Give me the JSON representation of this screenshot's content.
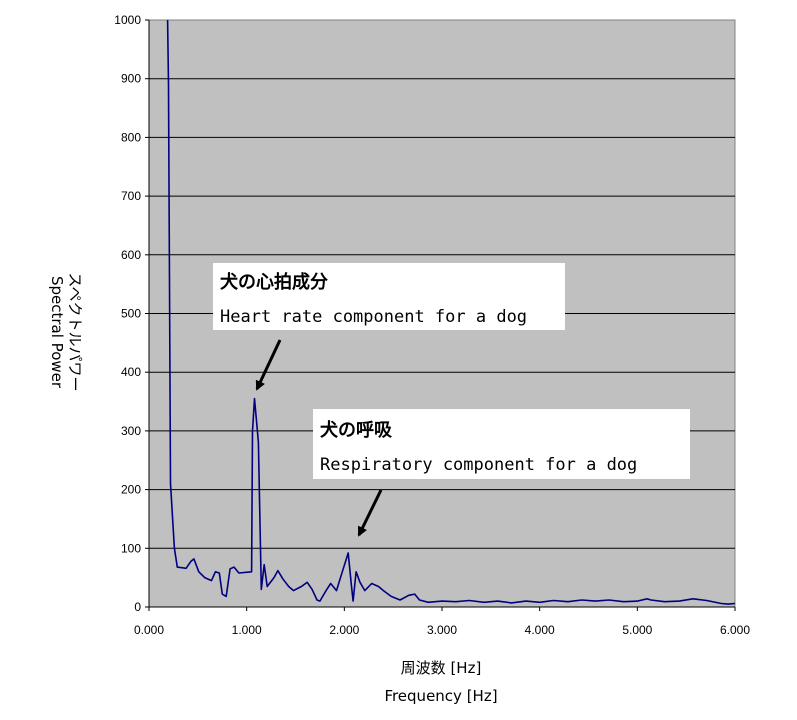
{
  "chart_data": {
    "type": "line",
    "title": "",
    "xlabel_ja": "周波数 [Hz]",
    "xlabel_en": "Frequency [Hz]",
    "ylabel_ja": "スペクトルパワー",
    "ylabel_en": "Spectral Power",
    "xlim": [
      0,
      6
    ],
    "ylim": [
      0,
      1000
    ],
    "xticks": [
      "0.000",
      "1.000",
      "2.000",
      "3.000",
      "4.000",
      "5.000",
      "6.000"
    ],
    "yticks": [
      "0",
      "100",
      "200",
      "300",
      "400",
      "500",
      "600",
      "700",
      "800",
      "900",
      "1000"
    ],
    "grid": "horizontal",
    "plot_background": "#C0C0C0",
    "line_color": "#000080",
    "series": [
      {
        "points": [
          [
            0.19,
            1000
          ],
          [
            0.2,
            890
          ],
          [
            0.22,
            210
          ],
          [
            0.26,
            100
          ],
          [
            0.29,
            68
          ],
          [
            0.38,
            66
          ],
          [
            0.43,
            78
          ],
          [
            0.46,
            82
          ],
          [
            0.51,
            60
          ],
          [
            0.57,
            50
          ],
          [
            0.64,
            45
          ],
          [
            0.68,
            60
          ],
          [
            0.72,
            58
          ],
          [
            0.75,
            22
          ],
          [
            0.79,
            18
          ],
          [
            0.83,
            65
          ],
          [
            0.87,
            68
          ],
          [
            0.92,
            58
          ],
          [
            1.05,
            60
          ],
          [
            1.06,
            300
          ],
          [
            1.08,
            355
          ],
          [
            1.11,
            300
          ],
          [
            1.12,
            280
          ],
          [
            1.15,
            30
          ],
          [
            1.18,
            72
          ],
          [
            1.21,
            35
          ],
          [
            1.28,
            50
          ],
          [
            1.32,
            62
          ],
          [
            1.37,
            48
          ],
          [
            1.43,
            35
          ],
          [
            1.48,
            28
          ],
          [
            1.56,
            35
          ],
          [
            1.62,
            42
          ],
          [
            1.67,
            30
          ],
          [
            1.72,
            12
          ],
          [
            1.75,
            10
          ],
          [
            1.82,
            30
          ],
          [
            1.86,
            40
          ],
          [
            1.92,
            28
          ],
          [
            1.97,
            55
          ],
          [
            2.04,
            92
          ],
          [
            2.07,
            40
          ],
          [
            2.09,
            10
          ],
          [
            2.12,
            60
          ],
          [
            2.16,
            42
          ],
          [
            2.21,
            28
          ],
          [
            2.28,
            40
          ],
          [
            2.35,
            35
          ],
          [
            2.4,
            28
          ],
          [
            2.48,
            18
          ],
          [
            2.57,
            12
          ],
          [
            2.66,
            20
          ],
          [
            2.72,
            22
          ],
          [
            2.77,
            12
          ],
          [
            2.86,
            8
          ],
          [
            3.0,
            10
          ],
          [
            3.14,
            9
          ],
          [
            3.28,
            11
          ],
          [
            3.43,
            8
          ],
          [
            3.57,
            10
          ],
          [
            3.71,
            7
          ],
          [
            3.86,
            10
          ],
          [
            4.0,
            8
          ],
          [
            4.14,
            11
          ],
          [
            4.29,
            9
          ],
          [
            4.43,
            12
          ],
          [
            4.57,
            10
          ],
          [
            4.71,
            12
          ],
          [
            4.86,
            9
          ],
          [
            5.0,
            10
          ],
          [
            5.1,
            14
          ],
          [
            5.14,
            12
          ],
          [
            5.28,
            9
          ],
          [
            5.43,
            10
          ],
          [
            5.57,
            14
          ],
          [
            5.71,
            11
          ],
          [
            5.86,
            6
          ],
          [
            5.93,
            5
          ],
          [
            6.0,
            6
          ]
        ]
      }
    ],
    "annotations": [
      {
        "ja": "犬の心拍成分",
        "en": "Heart rate component for a dog",
        "arrow_to": [
          1.08,
          355
        ]
      },
      {
        "ja": "犬の呼吸",
        "en": "Respiratory component for a dog",
        "arrow_to": [
          2.04,
          92
        ]
      }
    ]
  }
}
